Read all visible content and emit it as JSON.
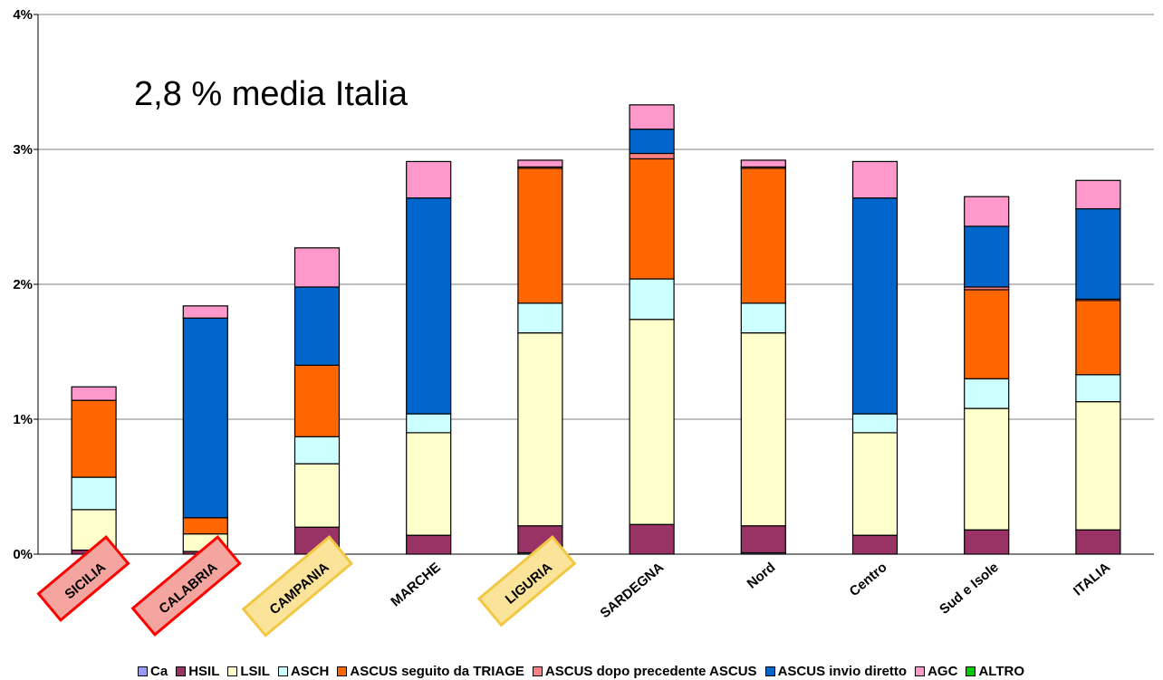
{
  "chart_data": {
    "type": "bar",
    "stacked": true,
    "annotation": "2,8 % media Italia",
    "categories": [
      "SICILIA",
      "CALABRIA",
      "CAMPANIA",
      "MARCHE",
      "LIGURIA",
      "SARDEGNA",
      "Nord",
      "Centro",
      "Sud e Isole",
      "ITALIA"
    ],
    "highlight": {
      "SICILIA": "red",
      "CALABRIA": "red",
      "CAMPANIA": "yellow",
      "LIGURIA": "yellow"
    },
    "y_ticks": [
      "0%",
      "1%",
      "2%",
      "3%",
      "4%"
    ],
    "ylim": [
      0,
      4
    ],
    "grid": true,
    "legend_position": "bottom",
    "series": [
      {
        "name": "Ca",
        "color": "#9999ff",
        "values": [
          0.0,
          0.0,
          0.0,
          0.0,
          0.01,
          0.0,
          0.01,
          0.0,
          0.0,
          0.0
        ]
      },
      {
        "name": "HSIL",
        "color": "#993366",
        "values": [
          0.03,
          0.02,
          0.2,
          0.14,
          0.2,
          0.22,
          0.2,
          0.14,
          0.18,
          0.18
        ]
      },
      {
        "name": "LSIL",
        "color": "#ffffcc",
        "values": [
          0.3,
          0.13,
          0.47,
          0.76,
          1.43,
          1.52,
          1.43,
          0.76,
          0.9,
          0.95
        ]
      },
      {
        "name": "ASCH",
        "color": "#ccffff",
        "values": [
          0.24,
          0.0,
          0.2,
          0.14,
          0.22,
          0.3,
          0.22,
          0.14,
          0.22,
          0.2
        ]
      },
      {
        "name": "ASCUS seguito da TRIAGE",
        "color": "#ff6600",
        "values": [
          0.57,
          0.12,
          0.53,
          0.0,
          1.0,
          0.89,
          1.0,
          0.0,
          0.66,
          0.55
        ]
      },
      {
        "name": "ASCUS dopo precedente ASCUS",
        "color": "#ff8080",
        "values": [
          0.0,
          0.0,
          0.0,
          0.0,
          0.01,
          0.04,
          0.01,
          0.0,
          0.02,
          0.01
        ]
      },
      {
        "name": "ASCUS invio diretto",
        "color": "#0066cc",
        "values": [
          0.0,
          1.48,
          0.58,
          1.6,
          0.0,
          0.18,
          0.0,
          1.6,
          0.45,
          0.67
        ]
      },
      {
        "name": "AGC",
        "color": "#ff99cc",
        "values": [
          0.1,
          0.09,
          0.29,
          0.27,
          0.05,
          0.18,
          0.05,
          0.27,
          0.22,
          0.21
        ]
      },
      {
        "name": "ALTRO",
        "color": "#00cc00",
        "values": [
          0,
          0,
          0,
          0,
          0,
          0,
          0,
          0,
          0,
          0
        ]
      }
    ]
  }
}
